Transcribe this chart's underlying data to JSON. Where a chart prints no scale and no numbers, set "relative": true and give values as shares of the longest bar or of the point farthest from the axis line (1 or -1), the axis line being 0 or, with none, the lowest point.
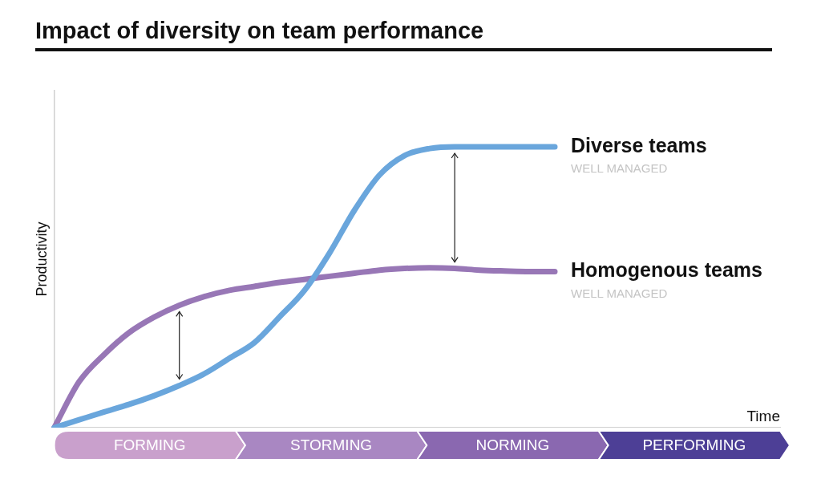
{
  "chart_data": {
    "type": "line",
    "title": "Impact of diversity on team performance",
    "xlabel": "Time",
    "ylabel": "Productivity",
    "relative": true,
    "categories": [
      null,
      null,
      null,
      null,
      null,
      null,
      null,
      null,
      null,
      null,
      null,
      null,
      null,
      null,
      null,
      null,
      null,
      null,
      null,
      null,
      null,
      null,
      null,
      null,
      null,
      null,
      null,
      null,
      null,
      null
    ],
    "series": [
      {
        "name": "Diverse teams",
        "color": "#6aa6dc",
        "values": [
          0,
          0.028,
          0.056,
          0.083,
          0.114,
          0.15,
          0.192,
          0.247,
          0.303,
          0.394,
          0.489,
          0.622,
          0.775,
          0.9,
          0.969,
          0.994,
          1,
          1,
          1,
          1,
          1,
          null,
          null,
          null,
          null,
          null,
          null,
          null,
          null,
          null
        ]
      },
      {
        "name": "Homogenous teams",
        "color": "#9877b6",
        "values": [
          0,
          0.164,
          0.261,
          0.339,
          0.394,
          0.436,
          0.467,
          0.489,
          0.503,
          0.517,
          0.528,
          0.539,
          0.55,
          0.561,
          0.567,
          0.569,
          0.567,
          0.561,
          0.558,
          0.556,
          0.556,
          null,
          null,
          null,
          null,
          null,
          null,
          null,
          null,
          null
        ]
      }
    ],
    "annotations": [
      "WELL MANAGED",
      "WELL MANAGED",
      "FORMING",
      "STORMING",
      "NORMING",
      "PERFORMING"
    ],
    "grid": false,
    "legend": false,
    "marker": "none",
    "line_style": "solid"
  }
}
